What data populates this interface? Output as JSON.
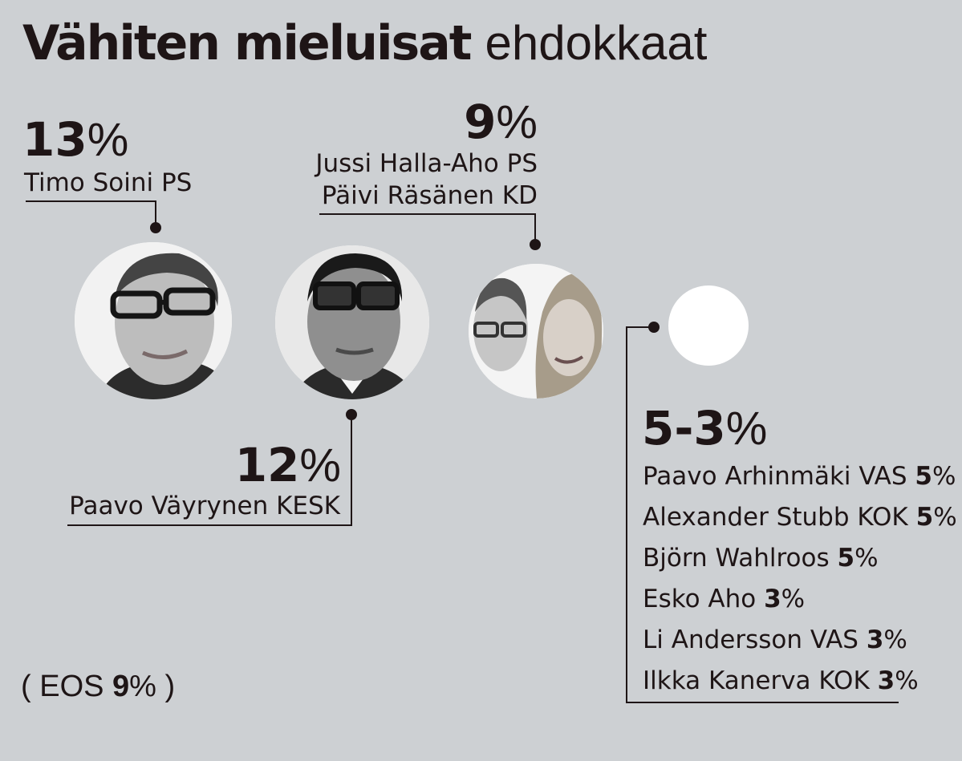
{
  "title": {
    "bold": "Vähiten mieluisat",
    "light": "ehdokkaat"
  },
  "chart_data": {
    "type": "table",
    "title": "Vähiten mieluisat ehdokkaat",
    "groups": [
      {
        "value": "13",
        "unit": "%",
        "names": [
          "Timo Soini PS"
        ]
      },
      {
        "value": "12",
        "unit": "%",
        "names": [
          "Paavo Väyrynen KESK"
        ]
      },
      {
        "value": "9",
        "unit": "%",
        "names": [
          "Jussi Halla-Aho PS",
          "Päivi Räsänen KD"
        ]
      },
      {
        "value": "5-3",
        "unit": "%",
        "names": [
          {
            "name": "Paavo Arhinmäki VAS",
            "value": "5",
            "unit": "%"
          },
          {
            "name": "Alexander Stubb KOK",
            "value": "5",
            "unit": "%"
          },
          {
            "name": "Björn Wahlroos",
            "value": "5",
            "unit": "%"
          },
          {
            "name": "Esko Aho",
            "value": "3",
            "unit": "%"
          },
          {
            "name": "Li Andersson VAS",
            "value": "3",
            "unit": "%"
          },
          {
            "name": "Ilkka Kanerva KOK",
            "value": "3",
            "unit": "%"
          }
        ]
      }
    ],
    "eos": {
      "label": "EOS",
      "value": "9",
      "unit": "%",
      "open": "(",
      "close": ")"
    }
  }
}
